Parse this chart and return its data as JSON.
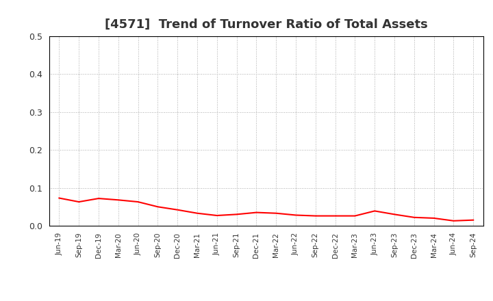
{
  "title": "[4571]  Trend of Turnover Ratio of Total Assets",
  "title_fontsize": 13,
  "title_color": "#333333",
  "line_color": "#FF0000",
  "line_width": 1.5,
  "background_color": "#FFFFFF",
  "ylim": [
    0.0,
    0.5
  ],
  "yticks": [
    0.0,
    0.1,
    0.2,
    0.3,
    0.4,
    0.5
  ],
  "grid_color": "#AAAAAA",
  "x_labels": [
    "Jun-19",
    "Sep-19",
    "Dec-19",
    "Mar-20",
    "Jun-20",
    "Sep-20",
    "Dec-20",
    "Mar-21",
    "Jun-21",
    "Sep-21",
    "Dec-21",
    "Mar-22",
    "Jun-22",
    "Sep-22",
    "Dec-22",
    "Mar-23",
    "Jun-23",
    "Sep-23",
    "Dec-23",
    "Mar-24",
    "Jun-24",
    "Sep-24"
  ],
  "values": [
    0.073,
    0.063,
    0.072,
    0.068,
    0.063,
    0.05,
    0.042,
    0.033,
    0.027,
    0.03,
    0.035,
    0.033,
    0.028,
    0.026,
    0.026,
    0.026,
    0.039,
    0.03,
    0.022,
    0.02,
    0.013,
    0.015
  ]
}
